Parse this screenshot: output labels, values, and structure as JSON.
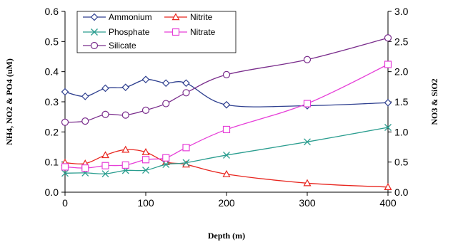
{
  "chart_data": {
    "type": "line",
    "xlabel": "Depth (m)",
    "ylabel_left": "NH4, NO2 & PO4 (uM)",
    "ylabel_right": "NO3 & SiO2",
    "xlim": [
      0,
      400
    ],
    "ylim_left": [
      0,
      0.6
    ],
    "ylim_right": [
      0,
      3.0
    ],
    "x_ticks": [
      0,
      100,
      200,
      300,
      400
    ],
    "y_ticks_left": [
      "0.0",
      "0.1",
      "0.2",
      "0.3",
      "0.4",
      "0.5",
      "0.6"
    ],
    "y_ticks_right": [
      "0.0",
      "0.5",
      "1.0",
      "1.5",
      "2.0",
      "2.5",
      "3.0"
    ],
    "legend_placement": "top-left",
    "grid": false,
    "series": [
      {
        "name": "Ammonium",
        "axis": "left",
        "color": "#2e3f8f",
        "marker": "diamond",
        "x": [
          0,
          25,
          50,
          75,
          100,
          125,
          150,
          200,
          300,
          400
        ],
        "y": [
          0.333,
          0.318,
          0.345,
          0.348,
          0.374,
          0.362,
          0.362,
          0.29,
          0.287,
          0.297
        ]
      },
      {
        "name": "Nitrite",
        "axis": "left",
        "color": "#e8261f",
        "marker": "triangle",
        "x": [
          0,
          25,
          50,
          75,
          100,
          125,
          150,
          200,
          300,
          400
        ],
        "y": [
          0.098,
          0.095,
          0.123,
          0.141,
          0.133,
          0.1,
          0.092,
          0.06,
          0.03,
          0.017
        ]
      },
      {
        "name": "Phosphate",
        "axis": "left",
        "color": "#2a9d8f",
        "marker": "x",
        "x": [
          0,
          25,
          50,
          75,
          100,
          125,
          150,
          200,
          300,
          400
        ],
        "y": [
          0.063,
          0.064,
          0.061,
          0.072,
          0.073,
          0.092,
          0.098,
          0.123,
          0.167,
          0.215
        ]
      },
      {
        "name": "Nitrate",
        "axis": "right",
        "color": "#e63fd8",
        "marker": "square",
        "x": [
          0,
          25,
          50,
          75,
          100,
          125,
          150,
          200,
          300,
          400
        ],
        "y": [
          0.42,
          0.4,
          0.44,
          0.45,
          0.54,
          0.57,
          0.74,
          1.04,
          1.47,
          2.12
        ]
      },
      {
        "name": "Silicate",
        "axis": "right",
        "color": "#7a2d8c",
        "marker": "circle",
        "x": [
          0,
          25,
          50,
          75,
          100,
          125,
          150,
          200,
          300,
          400
        ],
        "y": [
          1.16,
          1.18,
          1.29,
          1.28,
          1.36,
          1.47,
          1.65,
          1.95,
          2.2,
          2.56
        ]
      }
    ]
  }
}
